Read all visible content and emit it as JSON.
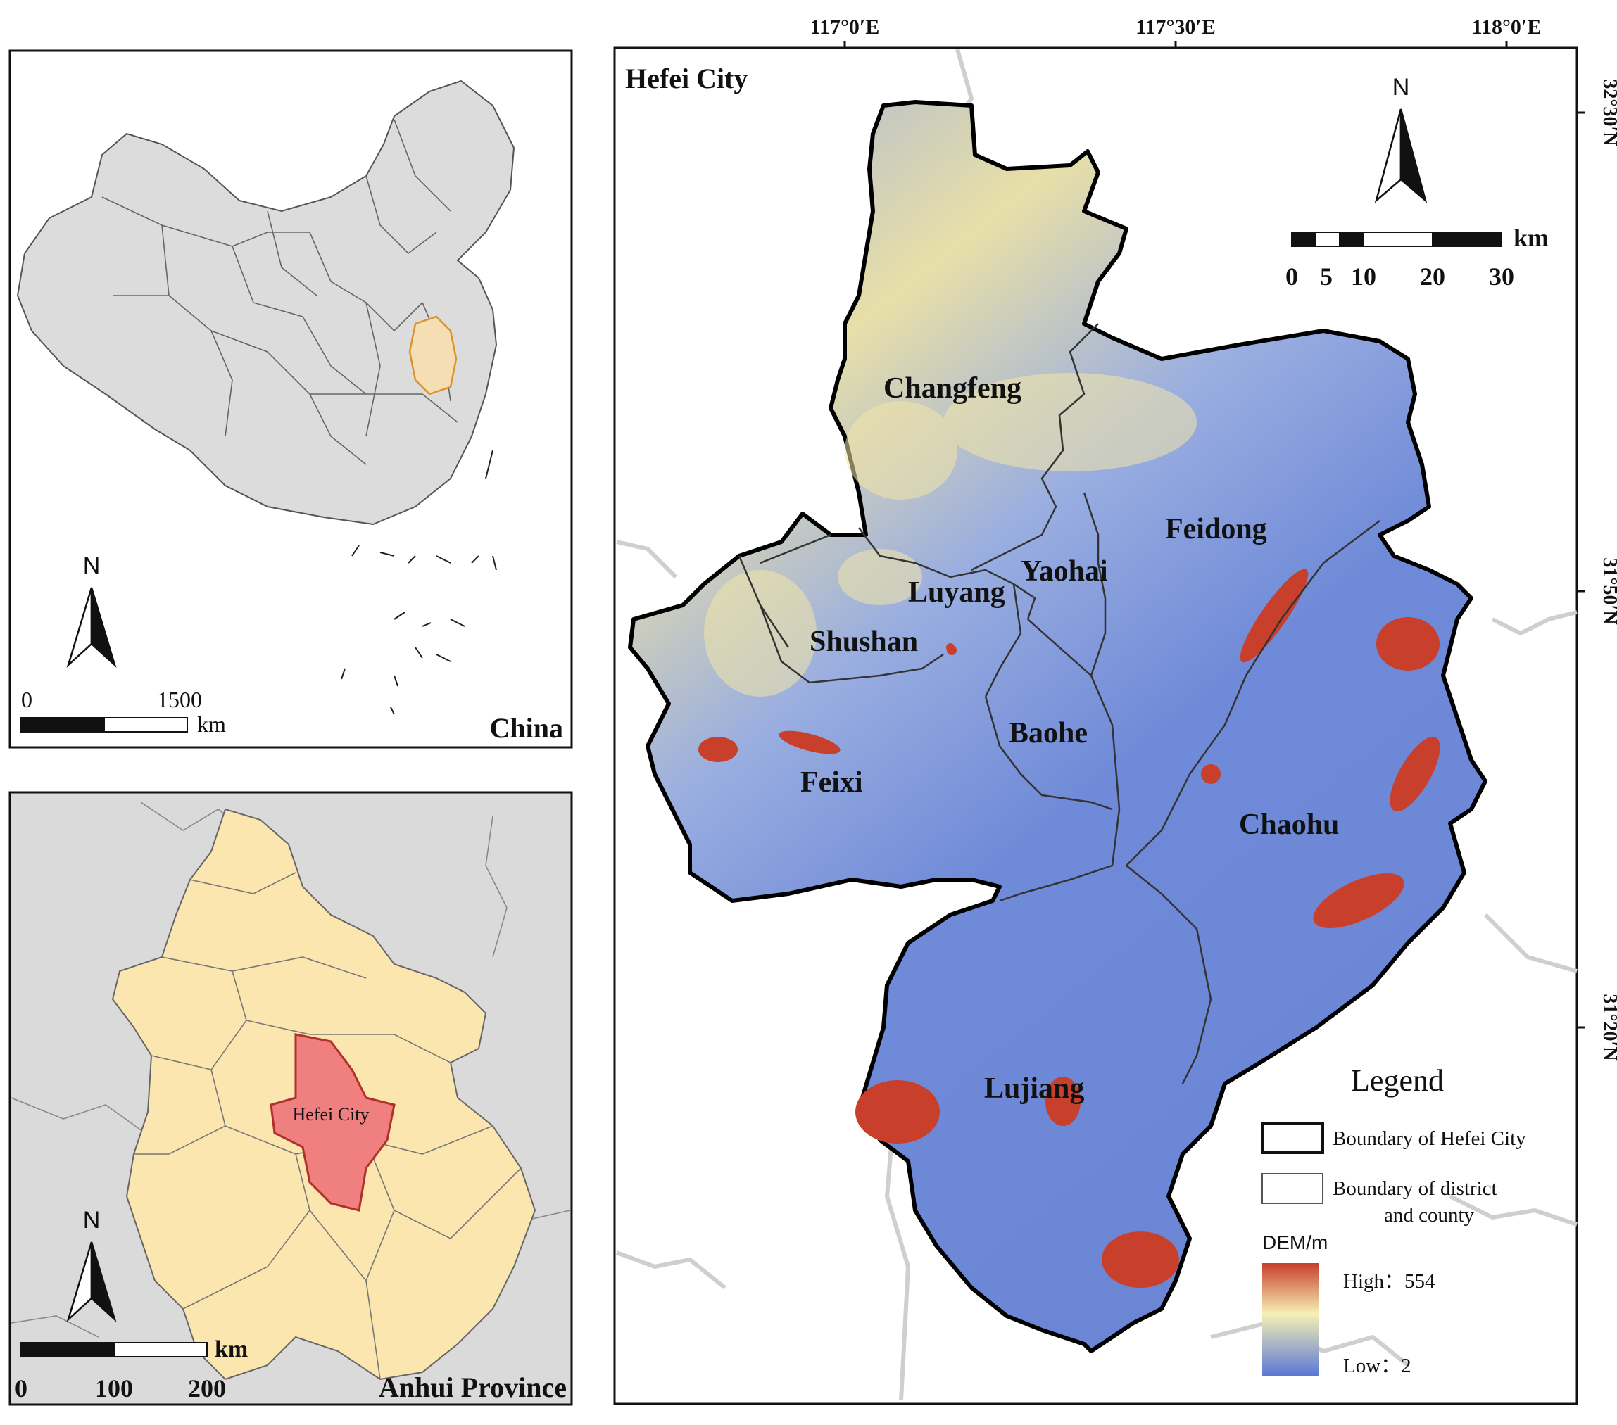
{
  "china_panel": {
    "title": "China",
    "north_label": "N",
    "scale": {
      "start": "0",
      "end": "1500",
      "unit": "km"
    },
    "highlight_color": "#f5deb3",
    "fill_color": "#dcdcdc"
  },
  "anhui_panel": {
    "title": "Anhui Province",
    "city_label": "Hefei City",
    "north_label": "N",
    "scale": {
      "ticks": [
        "0",
        "100",
        "200"
      ],
      "unit": "km"
    },
    "province_color": "#fbe6b0",
    "city_color": "#f08080"
  },
  "hefei_panel": {
    "title": "Hefei City",
    "north_label": "N",
    "longitudes": [
      "117°0′E",
      "117°30′E",
      "118°0′E"
    ],
    "latitudes": [
      "32°30′N",
      "31°50′N",
      "31°20′N"
    ],
    "scale": {
      "ticks": [
        "0",
        "5",
        "10",
        "20",
        "30"
      ],
      "unit": "km"
    },
    "districts": [
      "Changfeng",
      "Feidong",
      "Yaohai",
      "Luyang",
      "Shushan",
      "Baohe",
      "Feixi",
      "Chaohu",
      "Lujiang"
    ],
    "legend": {
      "title": "Legend",
      "item_city": "Boundary of Hefei City",
      "item_district_line1": "Boundary of district",
      "item_district_line2": "and county",
      "dem_title": "DEM/m",
      "high": "High：554",
      "low": "Low：2"
    },
    "dem_colors": {
      "high": "#c8402c",
      "mid": "#f6f0b4",
      "low": "#5b78d6"
    }
  }
}
